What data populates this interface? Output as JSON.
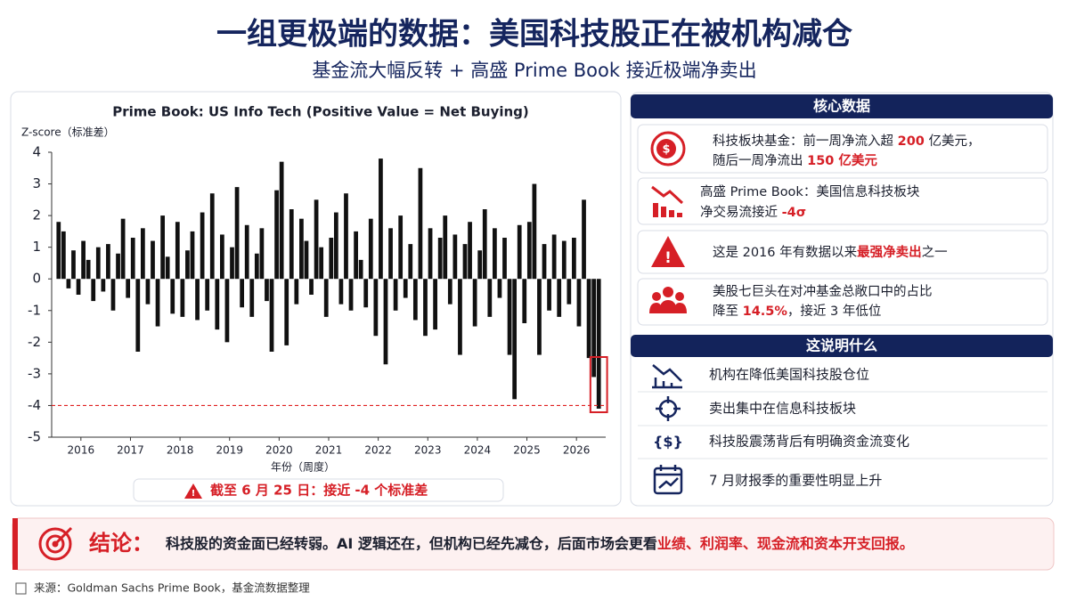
{
  "header": {
    "title": "一组更极端的数据：美国科技股正在被机构减仓",
    "subtitle": "基金流大幅反转 + 高盛 Prime Book 接近极端净卖出"
  },
  "chart_data": {
    "type": "bar",
    "title": "Prime Book: US Info Tech (Positive Value = Net Buying)",
    "y_label": "Z-score（标准差）",
    "x_label": "年份（周度）",
    "x": [
      2015.55,
      2015.65,
      2015.75,
      2015.85,
      2015.95,
      2016.05,
      2016.15,
      2016.25,
      2016.35,
      2016.45,
      2016.55,
      2016.65,
      2016.75,
      2016.85,
      2016.95,
      2017.05,
      2017.15,
      2017.25,
      2017.35,
      2017.45,
      2017.55,
      2017.65,
      2017.75,
      2017.85,
      2017.95,
      2018.05,
      2018.15,
      2018.25,
      2018.35,
      2018.45,
      2018.55,
      2018.65,
      2018.75,
      2018.85,
      2018.95,
      2019.05,
      2019.15,
      2019.25,
      2019.35,
      2019.45,
      2019.55,
      2019.65,
      2019.75,
      2019.85,
      2019.95,
      2020.05,
      2020.15,
      2020.25,
      2020.35,
      2020.45,
      2020.55,
      2020.65,
      2020.75,
      2020.85,
      2020.95,
      2021.05,
      2021.15,
      2021.25,
      2021.35,
      2021.45,
      2021.55,
      2021.65,
      2021.75,
      2021.85,
      2021.95,
      2022.05,
      2022.15,
      2022.25,
      2022.35,
      2022.45,
      2022.55,
      2022.65,
      2022.75,
      2022.85,
      2022.95,
      2023.05,
      2023.15,
      2023.25,
      2023.35,
      2023.45,
      2023.55,
      2023.65,
      2023.75,
      2023.85,
      2023.95,
      2024.05,
      2024.15,
      2024.25,
      2024.35,
      2024.45,
      2024.55,
      2024.65,
      2024.75,
      2024.85,
      2024.95,
      2025.05,
      2025.15,
      2025.25,
      2025.35,
      2025.45,
      2025.55,
      2025.65,
      2025.75,
      2025.85,
      2025.95,
      2026.05,
      2026.15,
      2026.25,
      2026.35,
      2026.45
    ],
    "values": [
      1.8,
      1.5,
      -0.3,
      0.9,
      -0.5,
      1.2,
      0.6,
      -0.7,
      1.0,
      -0.4,
      1.1,
      -1.0,
      0.8,
      1.9,
      -0.6,
      1.3,
      -2.3,
      1.6,
      -0.8,
      1.2,
      -1.5,
      2.0,
      0.7,
      -1.1,
      1.8,
      -1.2,
      0.9,
      1.5,
      -1.3,
      2.1,
      -1.0,
      2.7,
      -1.6,
      1.4,
      -2.0,
      1.0,
      2.9,
      -0.9,
      1.7,
      -1.2,
      0.8,
      1.6,
      -0.7,
      -2.3,
      2.8,
      3.7,
      -2.1,
      2.2,
      -0.8,
      1.9,
      1.2,
      -0.5,
      2.5,
      1.0,
      -1.2,
      1.3,
      2.1,
      -0.8,
      2.7,
      -1.0,
      1.5,
      0.6,
      -0.9,
      1.9,
      -1.8,
      3.8,
      -2.7,
      1.6,
      -1.0,
      2.0,
      -0.6,
      1.1,
      -1.3,
      3.5,
      -1.8,
      1.6,
      -1.6,
      1.3,
      2.0,
      -0.8,
      1.4,
      -2.4,
      1.1,
      1.8,
      -1.5,
      0.9,
      2.2,
      -1.2,
      1.6,
      -0.6,
      1.3,
      -2.4,
      -3.8,
      1.7,
      -1.4,
      1.8,
      3.0,
      -2.4,
      1.1,
      -1.0,
      1.4,
      -1.2,
      1.2,
      -0.8,
      1.3,
      -1.5,
      2.5,
      -2.5,
      -3.1,
      -4.1
    ],
    "color": "#111111",
    "xlim": [
      2015.41,
      2026.59
    ],
    "xticks": [
      2016,
      2017,
      2018,
      2019,
      2020,
      2021,
      2022,
      2023,
      2024,
      2025,
      2026
    ],
    "ylim": [
      -5,
      4
    ],
    "yticks": [
      -5,
      -4,
      -3,
      -2,
      -1,
      0,
      1,
      2,
      3,
      4
    ],
    "grid": false,
    "threshold": -4,
    "threshold_color": "#e02020",
    "highlight_color": "#d61f26",
    "annotation": "截至 6 月 25 日：接近 -4 个标准差"
  },
  "key_data": {
    "title": "核心数据",
    "items": [
      {
        "lines": [
          [
            "科技板块基金：前一周净流入超 ",
            "200",
            " 亿美元，"
          ],
          [
            "随后一周净流出 ",
            "150 亿美元"
          ]
        ]
      },
      {
        "lines": [
          [
            "高盛 Prime Book：美国信息科技板块"
          ],
          [
            "净交易流接近 ",
            "-4σ"
          ]
        ]
      },
      {
        "lines": [
          [
            "这是 2016 年有数据以来",
            "最强净卖出",
            "之一"
          ]
        ]
      },
      {
        "lines": [
          [
            "美股七巨头在对冲基金总敞口中的占比"
          ],
          [
            "降至 ",
            "14.5%",
            "，接近 3 年低位"
          ]
        ]
      }
    ]
  },
  "meaning": {
    "title": "这说明什么",
    "items": [
      "机构在降低美国科技股仓位",
      "卖出集中在信息科技板块",
      "科技股震荡背后有明确资金流变化",
      "7 月财报季的重要性明显上升"
    ]
  },
  "conclusion": {
    "label": "结论：",
    "parts": [
      "科技股的资金面已经转弱。AI 逻辑还在，但机构已经先减仓，后面市场会更看",
      "业绩、利润率、现金流和资本开支回报。"
    ]
  },
  "source": "来源：Goldman Sachs Prime Book，基金流数据整理"
}
